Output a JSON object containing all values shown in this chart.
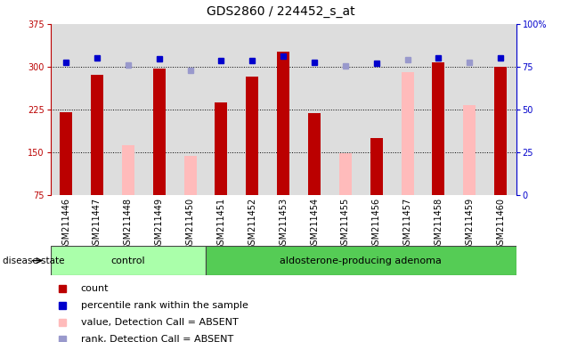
{
  "title": "GDS2860 / 224452_s_at",
  "samples": [
    "GSM211446",
    "GSM211447",
    "GSM211448",
    "GSM211449",
    "GSM211450",
    "GSM211451",
    "GSM211452",
    "GSM211453",
    "GSM211454",
    "GSM211455",
    "GSM211456",
    "GSM211457",
    "GSM211458",
    "GSM211459",
    "GSM211460"
  ],
  "red_bars": [
    220,
    285,
    null,
    297,
    null,
    237,
    283,
    327,
    218,
    null,
    175,
    null,
    308,
    null,
    300
  ],
  "pink_bars": [
    null,
    null,
    162,
    null,
    143,
    null,
    null,
    null,
    null,
    148,
    null,
    290,
    null,
    232,
    null
  ],
  "blue_squares": [
    308,
    315,
    null,
    314,
    null,
    310,
    310,
    318,
    307,
    null,
    306,
    null,
    316,
    null,
    316
  ],
  "light_blue_squares": [
    null,
    null,
    303,
    null,
    294,
    null,
    null,
    null,
    null,
    301,
    null,
    313,
    null,
    308,
    null
  ],
  "ylim_left": [
    75,
    375
  ],
  "ylim_right": [
    0,
    100
  ],
  "yticks_left": [
    75,
    150,
    225,
    300,
    375
  ],
  "yticks_right": [
    0,
    25,
    50,
    75,
    100
  ],
  "ytick_right_labels": [
    "0",
    "25",
    "50",
    "75",
    "100%"
  ],
  "grid_lines": [
    150,
    225,
    300
  ],
  "bar_color_red": "#bb0000",
  "bar_color_pink": "#ffbbbb",
  "square_color_blue": "#0000cc",
  "square_color_lightblue": "#9999cc",
  "control_n": 5,
  "adenoma_n": 10,
  "control_label": "control",
  "adenoma_label": "aldosterone-producing adenoma",
  "disease_label": "disease state",
  "group_color_light": "#aaffaa",
  "group_color_dark": "#55cc55",
  "legend_labels": [
    "count",
    "percentile rank within the sample",
    "value, Detection Call = ABSENT",
    "rank, Detection Call = ABSENT"
  ],
  "legend_colors": [
    "#bb0000",
    "#0000cc",
    "#ffbbbb",
    "#9999cc"
  ],
  "background_color": "#ffffff",
  "plot_bg_color": "#dddddd",
  "bar_width": 0.4,
  "title_fontsize": 10,
  "tick_fontsize": 7,
  "legend_fontsize": 8,
  "group_fontsize": 8
}
